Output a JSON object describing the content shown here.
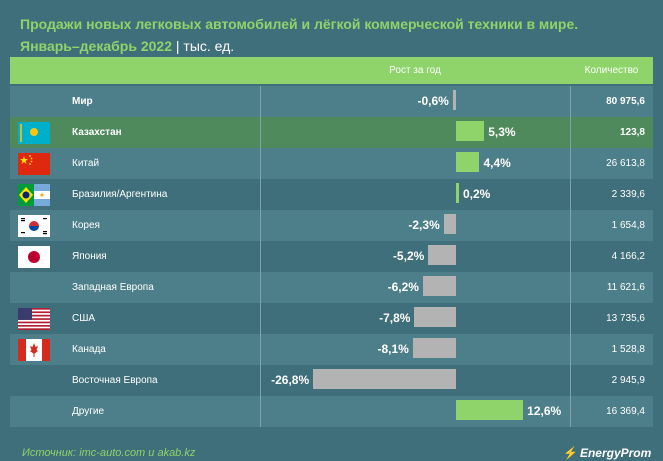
{
  "chart_data": {
    "type": "bar",
    "title": "Продажи новых легковых автомобилей и лёгкой коммерческой техники в мире.",
    "subtitle_period": "Январь–декабрь 2022",
    "subtitle_unit": "тыс. ед.",
    "columns": [
      "Рост за год",
      "Количество"
    ],
    "rows": [
      {
        "label": "Мир",
        "growth": -0.6,
        "growth_label": "-0,6%",
        "qty": "80 975,6",
        "flag": "",
        "bold": true,
        "highlight": false
      },
      {
        "label": "Казахстан",
        "growth": 5.3,
        "growth_label": "5,3%",
        "qty": "123,8",
        "flag": "kazakhstan-flag-icon",
        "bold": true,
        "highlight": true
      },
      {
        "label": "Китай",
        "growth": 4.4,
        "growth_label": "4,4%",
        "qty": "26 613,8",
        "flag": "china-flag-icon",
        "bold": false,
        "highlight": false
      },
      {
        "label": "Бразилия/Аргентина",
        "growth": 0.2,
        "growth_label": "0,2%",
        "qty": "2 339,6",
        "flag": "brazil-argentina-flag-icon",
        "bold": false,
        "highlight": false
      },
      {
        "label": "Корея",
        "growth": -2.3,
        "growth_label": "-2,3%",
        "qty": "1 654,8",
        "flag": "korea-flag-icon",
        "bold": false,
        "highlight": false
      },
      {
        "label": "Япония",
        "growth": -5.2,
        "growth_label": "-5,2%",
        "qty": "4 166,2",
        "flag": "japan-flag-icon",
        "bold": false,
        "highlight": false
      },
      {
        "label": "Западная Европа",
        "growth": -6.2,
        "growth_label": "-6,2%",
        "qty": "11 621,6",
        "flag": "",
        "bold": false,
        "highlight": false
      },
      {
        "label": "США",
        "growth": -7.8,
        "growth_label": "-7,8%",
        "qty": "13 735,6",
        "flag": "usa-flag-icon",
        "bold": false,
        "highlight": false
      },
      {
        "label": "Канада",
        "growth": -8.1,
        "growth_label": "-8,1%",
        "qty": "1 528,8",
        "flag": "canada-flag-icon",
        "bold": false,
        "highlight": false
      },
      {
        "label": "Восточная Европа",
        "growth": -26.8,
        "growth_label": "-26,8%",
        "qty": "2 945,9",
        "flag": "",
        "bold": false,
        "highlight": false
      },
      {
        "label": "Другие",
        "growth": 12.6,
        "growth_label": "12,6%",
        "qty": "16 369,4",
        "flag": "",
        "bold": false,
        "highlight": false
      }
    ],
    "colors": {
      "positive": "#8ed46a",
      "negative": "#b3b3b3",
      "title": "#8ed46a",
      "header": "#8ed46a",
      "background": "#3f6f7a"
    }
  },
  "footer": {
    "source": "Источник: imc-auto.com и akab.kz",
    "logo": "EnergyProm"
  }
}
